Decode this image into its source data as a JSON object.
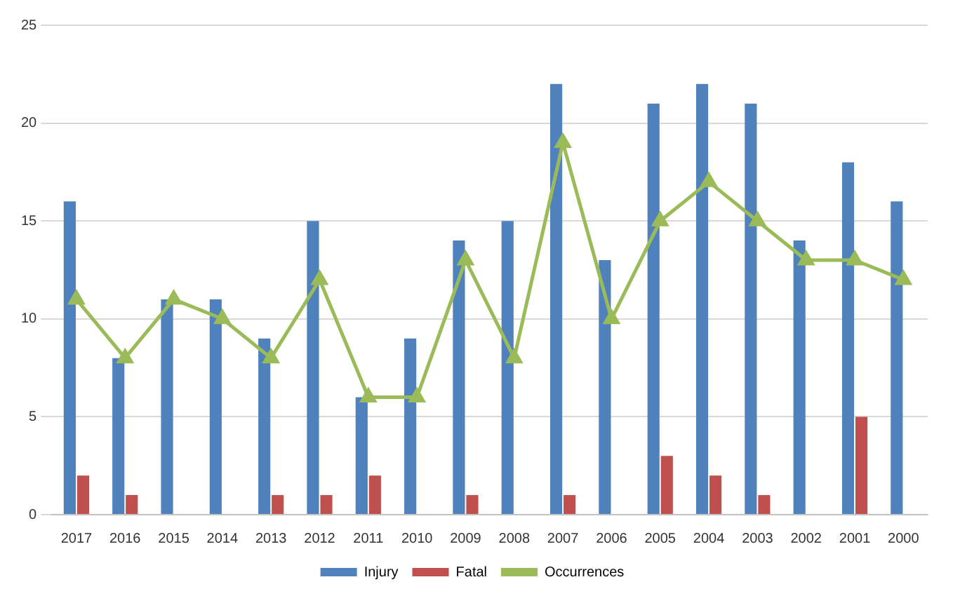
{
  "chart_data": {
    "type": "bar",
    "categories": [
      "2017",
      "2016",
      "2015",
      "2014",
      "2013",
      "2012",
      "2011",
      "2010",
      "2009",
      "2008",
      "2007",
      "2006",
      "2005",
      "2004",
      "2003",
      "2002",
      "2001",
      "2000"
    ],
    "series": [
      {
        "name": "Injury",
        "color": "#4f81bd",
        "values": [
          16,
          8,
          11,
          11,
          9,
          15,
          6,
          9,
          14,
          15,
          22,
          13,
          21,
          22,
          21,
          14,
          18,
          16
        ]
      },
      {
        "name": "Fatal",
        "color": "#c0504d",
        "values": [
          2,
          1,
          0,
          0,
          1,
          1,
          2,
          0,
          1,
          0,
          1,
          0,
          3,
          2,
          1,
          0,
          5,
          0
        ]
      },
      {
        "name": "Occurrences",
        "type": "line",
        "color": "#9bbb59",
        "marker": "triangle",
        "values": [
          11,
          8,
          11,
          10,
          8,
          12,
          6,
          6,
          13,
          8,
          19,
          10,
          15,
          17,
          15,
          13,
          13,
          12
        ]
      }
    ],
    "ylim": [
      0,
      25
    ],
    "yticks": [
      0,
      5,
      10,
      15,
      20,
      25
    ],
    "grid": "y",
    "legend": "bottom"
  }
}
